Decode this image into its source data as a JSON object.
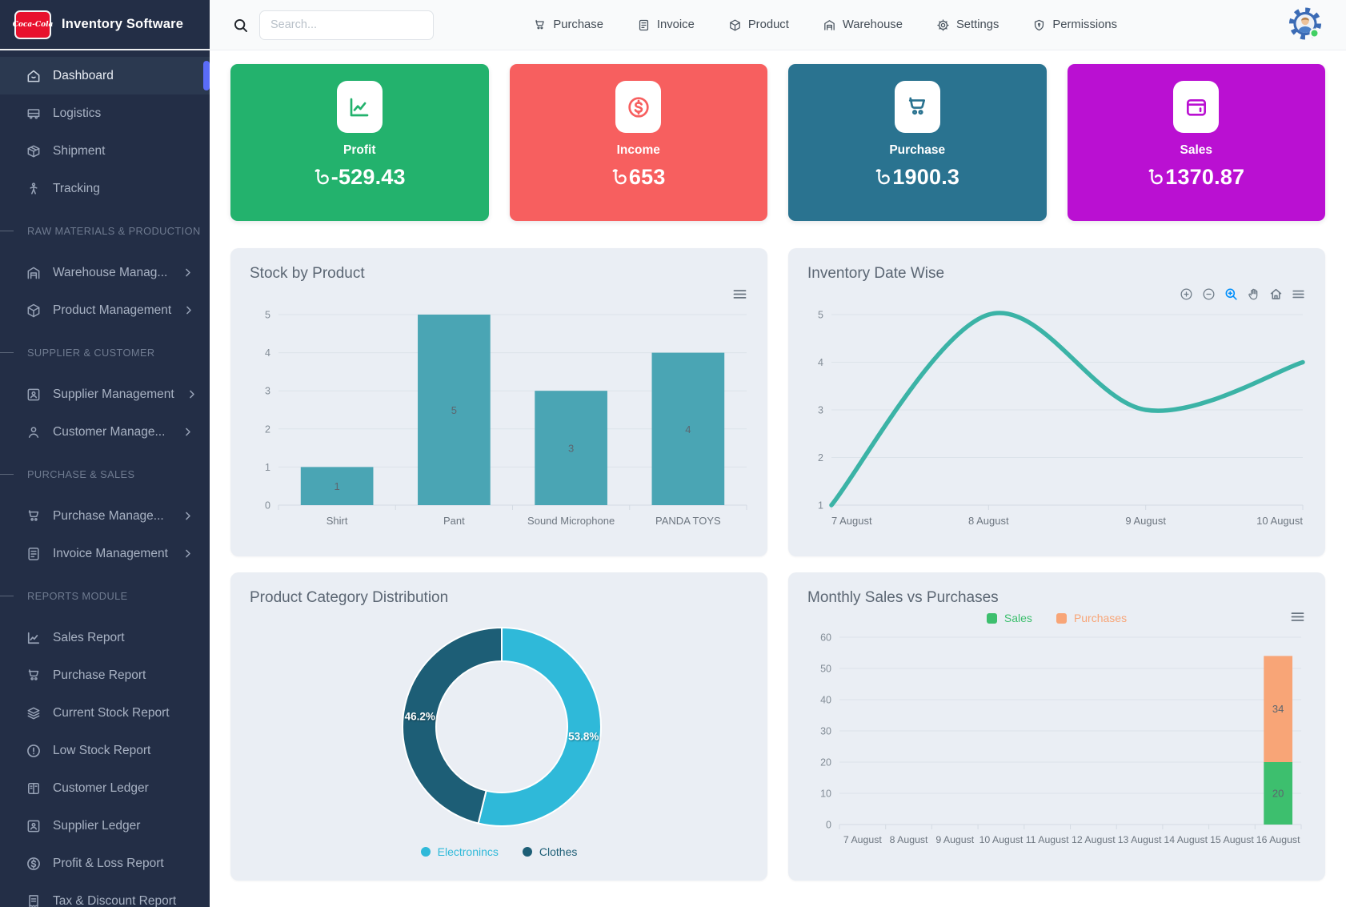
{
  "app": {
    "name": "Inventory Software",
    "logo_text": "Coca-Cola"
  },
  "topbar": {
    "search_placeholder": "Search...",
    "nav_items": [
      {
        "label": "Purchase",
        "icon": "cart-icon"
      },
      {
        "label": "Invoice",
        "icon": "invoice-icon"
      },
      {
        "label": "Product",
        "icon": "box-icon"
      },
      {
        "label": "Warehouse",
        "icon": "warehouse-icon"
      },
      {
        "label": "Settings",
        "icon": "gear-icon"
      },
      {
        "label": "Permissions",
        "icon": "shield-icon"
      }
    ],
    "avatar": {
      "icon": "user-avatar",
      "status_color": "#41cf63"
    }
  },
  "sidebar": {
    "items": [
      {
        "type": "link",
        "label": "Dashboard",
        "icon": "home-icon",
        "active": true
      },
      {
        "type": "link",
        "label": "Logistics",
        "icon": "truck-icon"
      },
      {
        "type": "link",
        "label": "Shipment",
        "icon": "package-icon"
      },
      {
        "type": "link",
        "label": "Tracking",
        "icon": "tracking-icon"
      },
      {
        "type": "section",
        "label": "RAW MATERIALS & PRODUCTION"
      },
      {
        "type": "link",
        "label": "Warehouse Manag...",
        "icon": "warehouse-icon",
        "chevron": true
      },
      {
        "type": "link",
        "label": "Product Management",
        "icon": "box-icon",
        "chevron": true
      },
      {
        "type": "section",
        "label": "SUPPLIER & CUSTOMER"
      },
      {
        "type": "link",
        "label": "Supplier Management",
        "icon": "supplier-icon",
        "chevron": true
      },
      {
        "type": "link",
        "label": "Customer Manage...",
        "icon": "user-icon",
        "chevron": true
      },
      {
        "type": "section",
        "label": "PURCHASE & SALES"
      },
      {
        "type": "link",
        "label": "Purchase Manage...",
        "icon": "cart-icon",
        "chevron": true
      },
      {
        "type": "link",
        "label": "Invoice Management",
        "icon": "invoice-icon",
        "chevron": true
      },
      {
        "type": "section",
        "label": "REPORTS MODULE"
      },
      {
        "type": "link",
        "label": "Sales Report",
        "icon": "chart-line-icon"
      },
      {
        "type": "link",
        "label": "Purchase Report",
        "icon": "cart-icon"
      },
      {
        "type": "link",
        "label": "Current Stock Report",
        "icon": "layers-icon"
      },
      {
        "type": "link",
        "label": "Low Stock Report",
        "icon": "alert-icon"
      },
      {
        "type": "link",
        "label": "Customer Ledger",
        "icon": "ledger-icon"
      },
      {
        "type": "link",
        "label": "Supplier Ledger",
        "icon": "supplier-icon"
      },
      {
        "type": "link",
        "label": "Profit & Loss Report",
        "icon": "dollar-icon"
      },
      {
        "type": "link",
        "label": "Tax & Discount Report",
        "icon": "receipt-icon"
      }
    ],
    "active_indicator_color": "#5a6cf8"
  },
  "stat_cards": [
    {
      "label": "Profit",
      "currency": "৳",
      "amount": "-529.43",
      "color": "#23b26d",
      "icon": "chart-line-icon"
    },
    {
      "label": "Income",
      "currency": "৳",
      "amount": "653",
      "color": "#f75f5f",
      "icon": "dollar-icon"
    },
    {
      "label": "Purchase",
      "currency": "৳",
      "amount": "1900.3",
      "color": "#2a7390",
      "icon": "cart-icon"
    },
    {
      "label": "Sales",
      "currency": "৳",
      "amount": "1370.87",
      "color": "#ba10d2",
      "icon": "wallet-icon"
    }
  ],
  "chart_toolbar_icons": [
    "zoom-in-icon",
    "zoom-out-icon",
    "selection-zoom-icon",
    "pan-icon",
    "reset-home-icon",
    "menu-icon"
  ],
  "chart_data": [
    {
      "id": "stock_by_product",
      "type": "bar",
      "title": "Stock by Product",
      "categories": [
        "Shirt",
        "Pant",
        "Sound Microphone",
        "PANDA TOYS"
      ],
      "values": [
        1,
        5,
        3,
        4
      ],
      "ylim": [
        0,
        5
      ],
      "yticks": [
        0,
        1,
        2,
        3,
        4,
        5
      ],
      "bar_color": "#4aa5b4",
      "grid": true,
      "legend_position": "none"
    },
    {
      "id": "inventory_date_wise",
      "type": "line",
      "title": "Inventory Date Wise",
      "categories": [
        "7 August",
        "8 August",
        "9 August",
        "10 August"
      ],
      "values": [
        1,
        5,
        3,
        4
      ],
      "ylim": [
        1,
        5
      ],
      "yticks": [
        1,
        2,
        3,
        4,
        5
      ],
      "line_color": "#3bb3a6",
      "smooth": true,
      "grid": true,
      "toolbar_active": "selection-zoom-icon",
      "toolbar_active_color": "#008ffb"
    },
    {
      "id": "product_category_distribution",
      "type": "pie",
      "title": "Product Category Distribution",
      "labels": [
        "Electronincs",
        "Clothes"
      ],
      "values": [
        53.8,
        46.2
      ],
      "value_labels": [
        "53.8%",
        "46.2%"
      ],
      "colors": [
        "#2fb9d9",
        "#1d5e76"
      ],
      "donut": true,
      "legend_position": "bottom"
    },
    {
      "id": "monthly_sales_vs_purchases",
      "type": "bar",
      "stacked": true,
      "title": "Monthly Sales vs Purchases",
      "categories": [
        "7 August",
        "8 August",
        "9 August",
        "10 August",
        "11 August",
        "12 August",
        "13 August",
        "14 August",
        "15 August",
        "16 August"
      ],
      "series": [
        {
          "name": "Sales",
          "color": "#3dbf6e",
          "values": [
            0,
            0,
            0,
            0,
            0,
            0,
            0,
            0,
            0,
            20
          ]
        },
        {
          "name": "Purchases",
          "color": "#f8a577",
          "values": [
            0,
            0,
            0,
            0,
            0,
            0,
            0,
            0,
            0,
            34
          ]
        }
      ],
      "ylim": [
        0,
        60
      ],
      "yticks": [
        0,
        10,
        20,
        30,
        40,
        50,
        60
      ],
      "legend_position": "top"
    }
  ]
}
